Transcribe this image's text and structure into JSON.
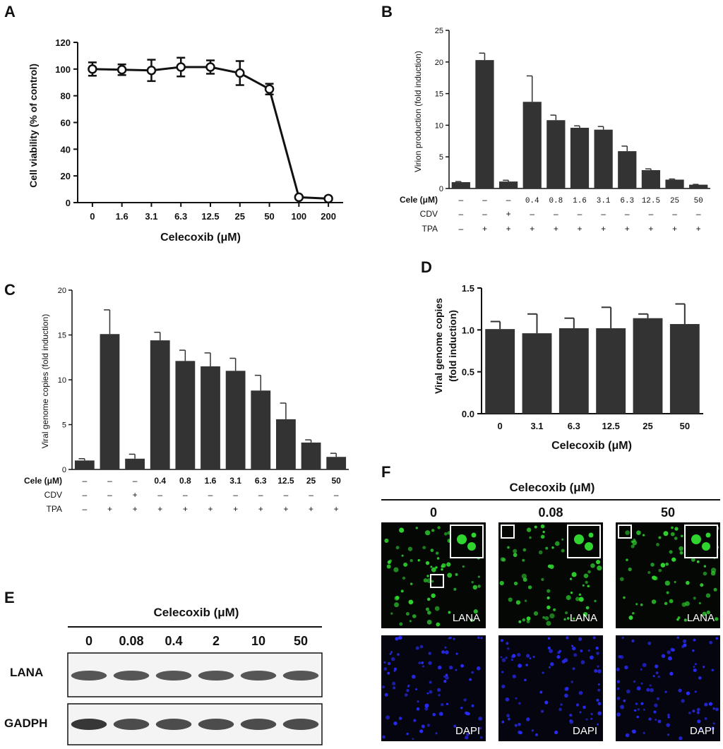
{
  "panels": {
    "A": "A",
    "B": "B",
    "C": "C",
    "D": "D",
    "E": "E",
    "F": "F"
  },
  "chart_data": [
    {
      "panel": "A",
      "type": "line",
      "ylabel": "Cell viability (% of control)",
      "xlabel": "Celecoxib (μM)",
      "categories": [
        "0",
        "1.6",
        "3.1",
        "6.3",
        "12.5",
        "25",
        "50",
        "100",
        "200"
      ],
      "values": [
        100,
        99.5,
        99,
        101.5,
        101.5,
        97,
        85,
        4,
        3
      ],
      "errors": [
        5,
        4,
        8,
        7,
        5,
        9,
        4,
        1,
        1
      ],
      "ylim": [
        0,
        120
      ],
      "yticks": [
        "0",
        "20",
        "40",
        "60",
        "80",
        "100",
        "120"
      ]
    },
    {
      "panel": "B",
      "type": "bar",
      "ylabel": "Virion production (fold induction)",
      "values": [
        1.0,
        20.3,
        1.1,
        13.7,
        10.8,
        9.6,
        9.3,
        5.9,
        2.9,
        1.4,
        0.6
      ],
      "errors": [
        0.1,
        1.1,
        0.2,
        4.1,
        0.8,
        0.3,
        0.5,
        0.8,
        0.2,
        0.1,
        0.05
      ],
      "ylim": [
        0,
        25
      ],
      "yticks": [
        "0",
        "5",
        "10",
        "15",
        "20",
        "25"
      ],
      "rows": [
        {
          "label": "Cele (μM)",
          "cells": [
            "–",
            "–",
            "–",
            "0.4",
            "0.8",
            "1.6",
            "3.1",
            "6.3",
            "12.5",
            "25",
            "50"
          ]
        },
        {
          "label": "CDV",
          "cells": [
            "–",
            "–",
            "+",
            "–",
            "–",
            "–",
            "–",
            "–",
            "–",
            "–",
            "–"
          ]
        },
        {
          "label": "TPA",
          "cells": [
            "–",
            "+",
            "+",
            "+",
            "+",
            "+",
            "+",
            "+",
            "+",
            "+",
            "+"
          ]
        }
      ]
    },
    {
      "panel": "C",
      "type": "bar",
      "ylabel": "Viral genome copies (fold induction)",
      "values": [
        1.0,
        15.1,
        1.2,
        14.4,
        12.1,
        11.5,
        11.0,
        8.8,
        5.6,
        3.0,
        1.4
      ],
      "errors": [
        0.2,
        2.7,
        0.5,
        0.9,
        1.2,
        1.5,
        1.4,
        1.7,
        1.8,
        0.3,
        0.4
      ],
      "ylim": [
        0,
        20
      ],
      "yticks": [
        "0",
        "5",
        "10",
        "15",
        "20"
      ],
      "rows": [
        {
          "label": "Cele (μM)",
          "cells": [
            "–",
            "–",
            "–",
            "0.4",
            "0.8",
            "1.6",
            "3.1",
            "6.3",
            "12.5",
            "25",
            "50"
          ]
        },
        {
          "label": "CDV",
          "cells": [
            "–",
            "–",
            "+",
            "–",
            "–",
            "–",
            "–",
            "–",
            "–",
            "–",
            "–"
          ]
        },
        {
          "label": "TPA",
          "cells": [
            "–",
            "+",
            "+",
            "+",
            "+",
            "+",
            "+",
            "+",
            "+",
            "+",
            "+"
          ]
        }
      ]
    },
    {
      "panel": "D",
      "type": "bar",
      "ylabel1": "Viral genome copies",
      "ylabel2": "(fold induction)",
      "xlabel": "Celecoxib (μM)",
      "categories": [
        "0",
        "3.1",
        "6.3",
        "12.5",
        "25",
        "50"
      ],
      "values": [
        1.01,
        0.96,
        1.02,
        1.02,
        1.14,
        1.07
      ],
      "errors": [
        0.09,
        0.23,
        0.12,
        0.25,
        0.05,
        0.24
      ],
      "ylim": [
        0,
        1.5
      ],
      "yticks": [
        "0.0",
        "0.5",
        "1.0",
        "1.5"
      ]
    }
  ],
  "blot": {
    "title": "Celecoxib (μM)",
    "lanes": [
      "0",
      "0.08",
      "0.4",
      "2",
      "10",
      "50"
    ],
    "rows": [
      "LANA",
      "GADPH"
    ]
  },
  "fluorescence": {
    "title": "Celecoxib (μM)",
    "columns": [
      "0",
      "0.08",
      "50"
    ],
    "stain_top": "LANA",
    "stain_bottom": "DAPI",
    "colors": {
      "green": "#2fd42f",
      "blue": "#2a2cff",
      "background": "#050705"
    }
  }
}
